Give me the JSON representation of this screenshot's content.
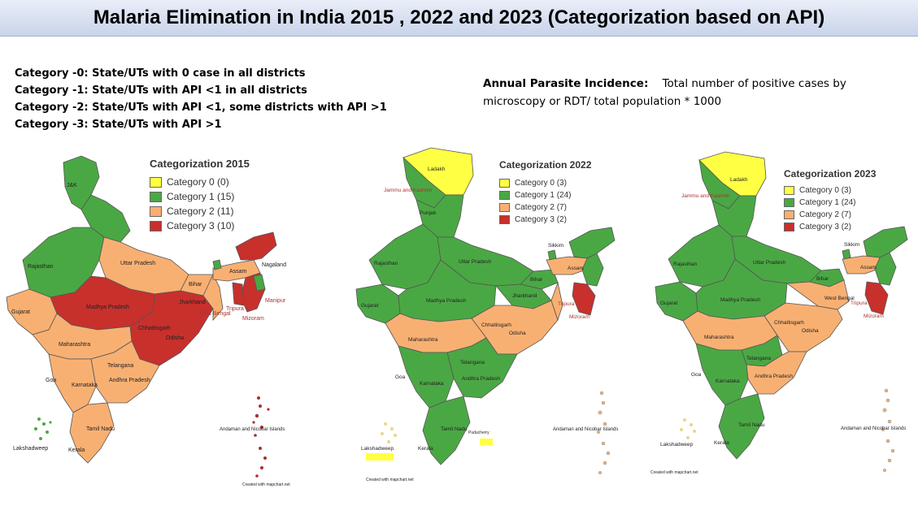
{
  "title": "Malaria Elimination in India 2015 , 2022 and 2023 (Categorization based on API)",
  "category_definitions": [
    "Category -0: State/UTs with 0 case in all districts",
    "Category -1: State/UTs with API <1 in all districts",
    "Category -2: State/UTs with API <1, some districts with API >1",
    "Category -3: State/UTs with API >1"
  ],
  "api_definition": {
    "term": "Annual Parasite Incidence:",
    "text": "Total number of positive cases by microscopy or RDT/ total population * 1000"
  },
  "colors": {
    "category0": "#ffff44",
    "category1": "#4aa844",
    "category2": "#f8b072",
    "category3": "#c8302c"
  },
  "maps": [
    {
      "legend_title": "Categorization  2015",
      "legend": [
        "Category 0 (0)",
        "Category 1 (15)",
        "Category 2 (11)",
        "Category 3 (10)"
      ],
      "labels": {
        "jk": "J&K",
        "rajasthan": "Rajasthan",
        "up": "Uttar Pradesh",
        "bihar": "Bihar",
        "mp": "Madhya Pradesh",
        "gujarat": "Gujarat",
        "maharashtra": "Maharashtra",
        "telangana": "Telangana",
        "ap": "Andhra Pradesh",
        "karnataka": "Karnataka",
        "tn": "Tamil Nadu",
        "kerala": "Kerala",
        "goa": "Goa",
        "odisha": "Odisha",
        "chhattisgarh": "Chhattisgarh",
        "jharkhand": "Jharkhand",
        "assam": "Assam",
        "nagaland": "Nagaland",
        "manipur": "Manipur",
        "mizoram": "Mizoram",
        "tripura": "Tripura",
        "lakshadweep": "Lakshadweep",
        "andaman": "Andaman and Nicobar Islands",
        "wb": "West Bengal"
      },
      "credit": "Created with mapchart.net"
    },
    {
      "legend_title": "Categorization  2022",
      "legend": [
        "Category 0 (3)",
        "Category 1 (24)",
        "Category 2 (7)",
        "Category 3 (2)"
      ],
      "labels": {
        "ladakh": "Ladakh",
        "jk": "Jammu and Kashmir",
        "punjab": "Punjab",
        "rajasthan": "Rajasthan",
        "up": "Uttar Pradesh",
        "bihar": "Bihar",
        "mp": "Madhya Pradesh",
        "gujarat": "Gujarat",
        "maharashtra": "Maharashtra",
        "telangana": "Telangana",
        "ap": "Andhra Pradesh",
        "karnataka": "Karnataka",
        "tn": "Tamil Nadu",
        "kerala": "Kerala",
        "goa": "Goa",
        "odisha": "Odisha",
        "chhattisgarh": "Chhattisgarh",
        "jharkhand": "Jharkhand",
        "assam": "Assam",
        "sikkim": "Sikkim",
        "tripura": "Tripura",
        "mizoram": "Mizoram",
        "lakshadweep": "Lakshadweep",
        "andaman": "Andaman and Nicobar Islands",
        "puducherry": "Puducherry"
      },
      "credit": "Created with mapchart.net"
    },
    {
      "legend_title": "Categorization 2023",
      "legend": [
        "Category 0 (3)",
        "Category 1 (24)",
        "Category 2 (7)",
        "Category 3 (2)"
      ],
      "labels": {
        "ladakh": "Ladakh",
        "jk": "Jammu and Kashmir",
        "rajasthan": "Rajasthan",
        "up": "Uttar Pradesh",
        "bihar": "Bihar",
        "mp": "Madhya Pradesh",
        "gujarat": "Gujarat",
        "maharashtra": "Maharashtra",
        "telangana": "Telangana",
        "ap": "Andhra Pradesh",
        "karnataka": "Karnataka",
        "tn": "Tamil Nadu",
        "kerala": "Kerala",
        "goa": "Goa",
        "odisha": "Odisha",
        "chhattisgarh": "Chhattisgarh",
        "assam": "Assam",
        "sikkim": "Sikkim",
        "tripura": "Tripura",
        "mizoram": "Mizoram",
        "lakshadweep": "Lakshadweep",
        "andaman": "Andaman and Nicobar Islands",
        "wb": "West Bengal"
      },
      "credit": "Created with mapchart.net"
    }
  ]
}
